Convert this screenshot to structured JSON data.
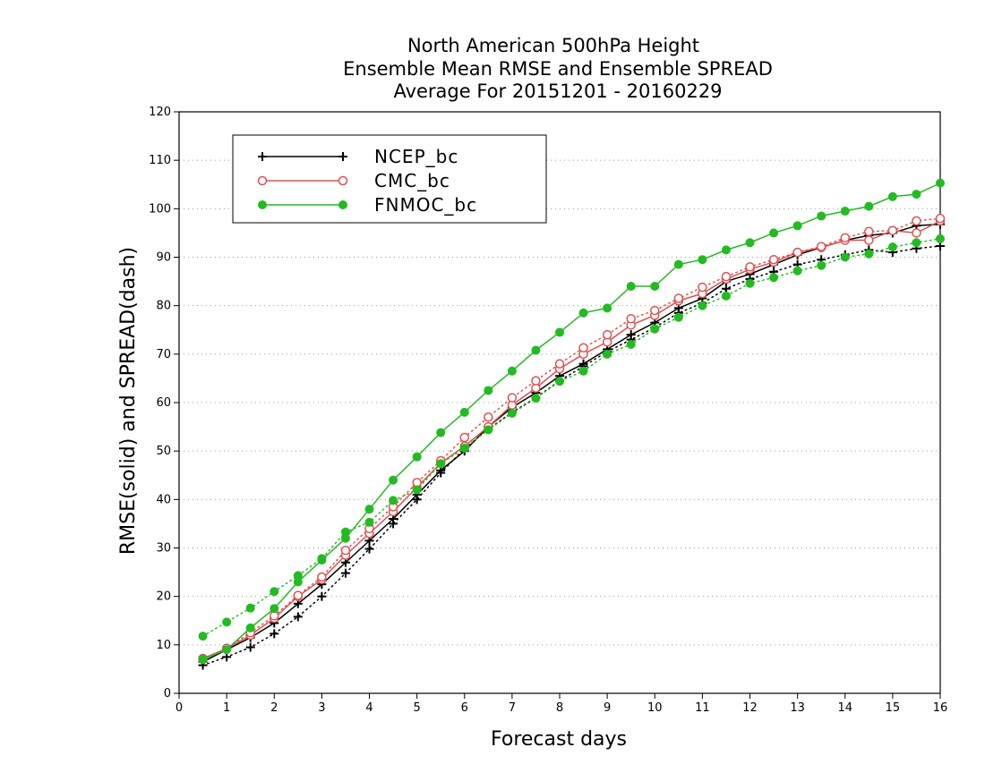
{
  "chart_data": {
    "type": "line",
    "title": [
      "North American 500hPa Height",
      "Ensemble Mean RMSE and Ensemble SPREAD",
      "Average For 20151201 - 20160229"
    ],
    "xlabel": "Forecast days",
    "ylabel": "RMSE(solid) and SPREAD(dash)",
    "xlim": [
      0,
      16
    ],
    "ylim": [
      0,
      120
    ],
    "x_ticks": [
      "0",
      "1",
      "2",
      "3",
      "4",
      "5",
      "6",
      "7",
      "8",
      "9",
      "10",
      "11",
      "12",
      "13",
      "14",
      "15",
      "16"
    ],
    "y_ticks": [
      "0",
      "10",
      "20",
      "30",
      "40",
      "50",
      "60",
      "70",
      "80",
      "90",
      "100",
      "110",
      "120"
    ],
    "grid": true,
    "legend_position": "top-left",
    "x": [
      0.5,
      1,
      1.5,
      2,
      2.5,
      3,
      3.5,
      4,
      4.5,
      5,
      5.5,
      6,
      6.5,
      7,
      7.5,
      8,
      8.5,
      9,
      9.5,
      10,
      10.5,
      11,
      11.5,
      12,
      12.5,
      13,
      13.5,
      14,
      14.5,
      15,
      15.5,
      16
    ],
    "series": [
      {
        "name": "NCEP_bc",
        "color": "#000000",
        "marker": "plus",
        "rmse": [
          6.5,
          9,
          11.5,
          14.5,
          18.5,
          22.5,
          27,
          31.5,
          36,
          41,
          46,
          50,
          55,
          59,
          62,
          65.5,
          68,
          71,
          74,
          76.5,
          79.5,
          81.5,
          85,
          86.5,
          88.5,
          90.5,
          92,
          93.5,
          94.5,
          95,
          96.5,
          96.8
        ],
        "spread": [
          5.8,
          7.5,
          9.5,
          12.3,
          15.8,
          20,
          24.8,
          29.8,
          35,
          40,
          45.5,
          50.5,
          54.5,
          58,
          61,
          64.5,
          67.5,
          70.5,
          73,
          75.5,
          78.5,
          80.5,
          83.5,
          85.5,
          87,
          88.5,
          89.5,
          90.5,
          91.5,
          91,
          91.8,
          92.3
        ]
      },
      {
        "name": "CMC_bc",
        "color": "#e05050",
        "marker": "open-circle",
        "rmse": [
          7.2,
          9.2,
          12,
          15.5,
          20,
          23.5,
          28.5,
          33,
          37.5,
          42.5,
          47.5,
          51,
          55,
          59.5,
          63,
          67,
          70,
          72.5,
          76,
          78,
          81,
          82.5,
          85.5,
          87.5,
          89,
          91,
          92,
          93.5,
          93.5,
          95.5,
          95,
          97.5
        ],
        "spread": [
          7,
          9.3,
          12.5,
          16,
          20.2,
          24,
          29.5,
          34,
          38.5,
          43.5,
          48,
          52.8,
          57,
          61,
          64.5,
          68,
          71.3,
          74,
          77.3,
          79,
          81.5,
          83.8,
          86,
          88,
          89.5,
          91,
          92.2,
          94,
          95.3,
          95.5,
          97.5,
          98
        ]
      },
      {
        "name": "FNMOC_bc",
        "color": "#22bb22",
        "marker": "filled-circle",
        "rmse": [
          7,
          9,
          13.5,
          17.5,
          23,
          27.5,
          32,
          38,
          44,
          48.8,
          53.8,
          58,
          62.5,
          66.5,
          70.8,
          74.5,
          78.5,
          79.5,
          84,
          84,
          88.5,
          89.5,
          91.5,
          93,
          95,
          96.5,
          98.5,
          99.5,
          100.5,
          102.5,
          103,
          105.3
        ],
        "spread": [
          11.8,
          14.7,
          17.6,
          21,
          24.3,
          27.8,
          33.3,
          35.3,
          39.8,
          42,
          47.4,
          50.6,
          54.4,
          57.8,
          60.9,
          64.4,
          66.5,
          70,
          72,
          75.2,
          77.6,
          80,
          82,
          84.6,
          85.8,
          87.2,
          88.3,
          90,
          90.7,
          92.1,
          93,
          93.8
        ]
      }
    ]
  }
}
